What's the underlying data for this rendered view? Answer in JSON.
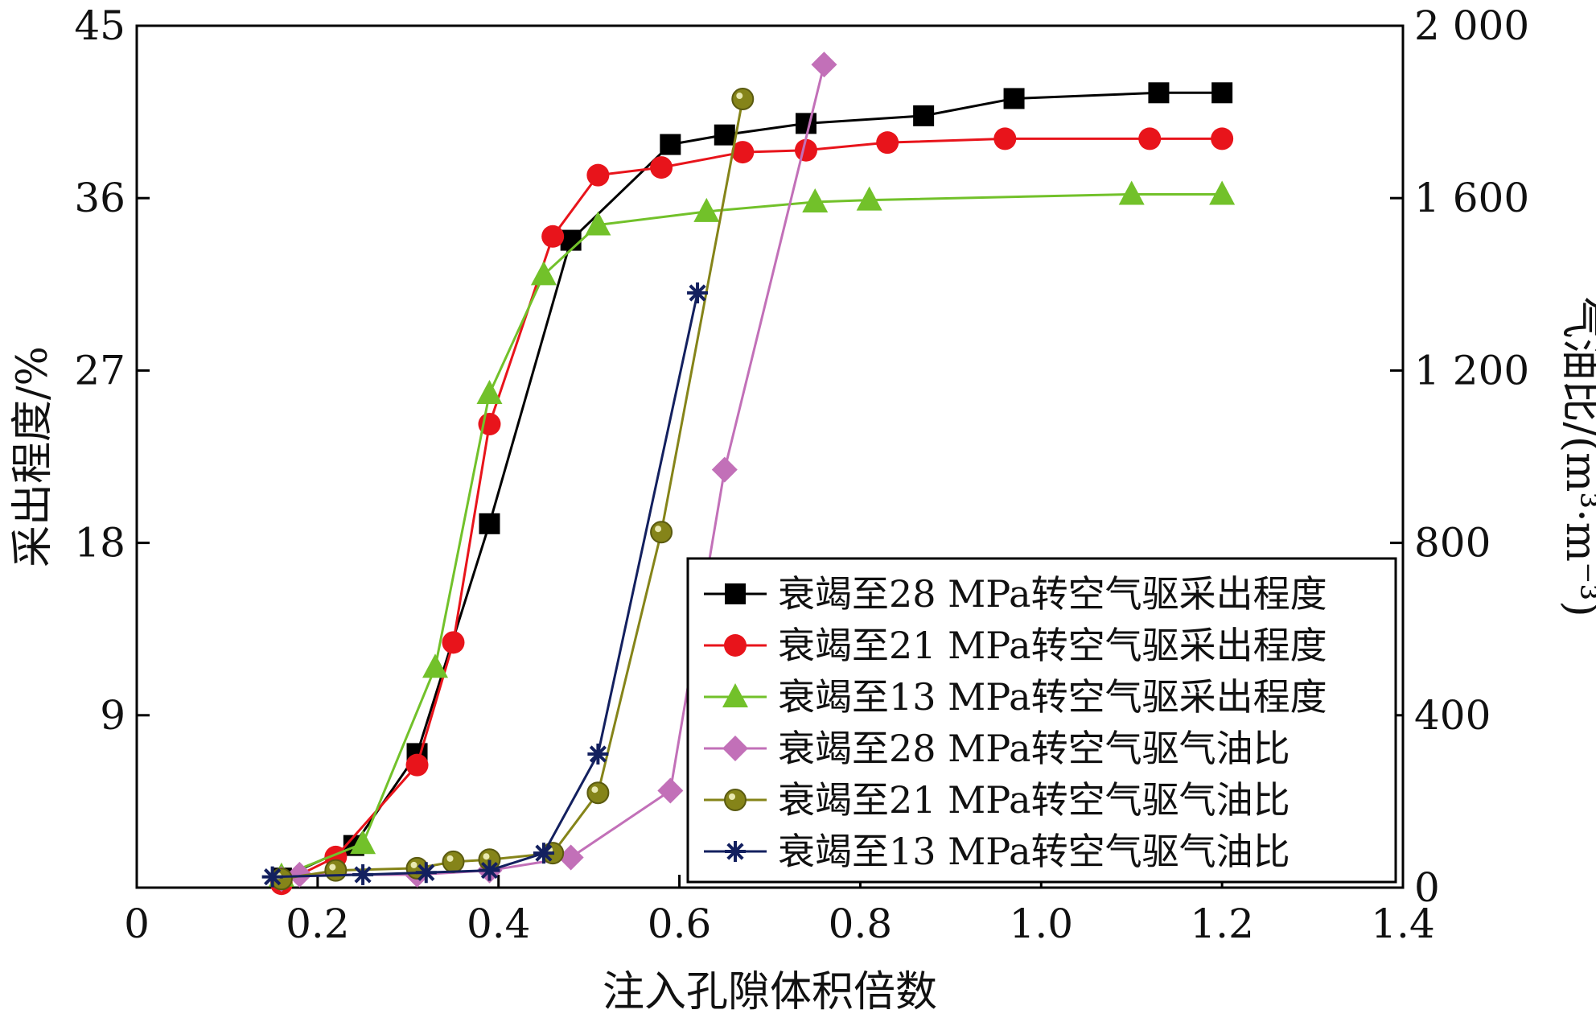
{
  "chart_data": {
    "type": "line",
    "xlabel": "注入孔隙体积倍数",
    "ylabel_left": "采出程度/%",
    "ylabel_right": "气油比/(m³·m⁻³)",
    "xlim": [
      0,
      1.4
    ],
    "ylim_left": [
      0,
      45
    ],
    "ylim_right": [
      0,
      2000
    ],
    "x_ticks": [
      0,
      0.2,
      0.4,
      0.6,
      0.8,
      1.0,
      1.2,
      1.4
    ],
    "x_tick_labels": [
      "0",
      "0.2",
      "0.4",
      "0.6",
      "0.8",
      "1.0",
      "1.2",
      "1.4"
    ],
    "y_left_ticks": [
      0,
      9,
      18,
      27,
      36,
      45
    ],
    "y_left_tick_labels": [
      "",
      "9",
      "18",
      "27",
      "36",
      "45"
    ],
    "y_right_ticks": [
      0,
      400,
      800,
      1200,
      1600,
      2000
    ],
    "y_right_tick_labels": [
      "0",
      "400",
      "800",
      "1 200",
      "1 600",
      "2 000"
    ],
    "legend_position": "bottom-right",
    "grid": false,
    "series": [
      {
        "name": "衰竭至28 MPa转空气驱采出程度",
        "axis": "left",
        "color": "#000000",
        "marker": "square",
        "x": [
          0.16,
          0.24,
          0.31,
          0.39,
          0.48,
          0.59,
          0.65,
          0.74,
          0.87,
          0.97,
          1.13,
          1.2
        ],
        "y": [
          0.5,
          2.2,
          7.0,
          19.0,
          33.8,
          38.8,
          39.3,
          39.9,
          40.3,
          41.2,
          41.5,
          41.5
        ]
      },
      {
        "name": "衰竭至21 MPa转空气驱采出程度",
        "axis": "left",
        "color": "#e8141b",
        "marker": "circle",
        "x": [
          0.16,
          0.22,
          0.31,
          0.35,
          0.39,
          0.46,
          0.51,
          0.58,
          0.67,
          0.74,
          0.83,
          0.96,
          1.12,
          1.2
        ],
        "y": [
          0.2,
          1.6,
          6.4,
          12.8,
          24.2,
          34.0,
          37.2,
          37.6,
          38.4,
          38.5,
          38.9,
          39.1,
          39.1,
          39.1
        ]
      },
      {
        "name": "衰竭至13 MPa转空气驱采出程度",
        "axis": "left",
        "color": "#72c12a",
        "marker": "triangle",
        "x": [
          0.16,
          0.25,
          0.33,
          0.39,
          0.45,
          0.51,
          0.63,
          0.75,
          0.81,
          1.1,
          1.2
        ],
        "y": [
          0.6,
          2.3,
          11.5,
          25.8,
          32.0,
          34.6,
          35.3,
          35.8,
          35.9,
          36.2,
          36.2
        ]
      },
      {
        "name": "衰竭至28 MPa转空气驱气油比",
        "axis": "right",
        "color": "#c270b8",
        "marker": "diamond",
        "x": [
          0.16,
          0.18,
          0.31,
          0.39,
          0.48,
          0.59,
          0.65,
          0.76
        ],
        "y": [
          20,
          30,
          30,
          40,
          70,
          225,
          970,
          1910
        ]
      },
      {
        "name": "衰竭至21 MPa转空气驱气油比",
        "axis": "right",
        "color": "#858419",
        "marker": "ball",
        "x": [
          0.16,
          0.22,
          0.31,
          0.35,
          0.39,
          0.46,
          0.51,
          0.58,
          0.67
        ],
        "y": [
          20,
          40,
          45,
          60,
          65,
          80,
          220,
          825,
          1830
        ]
      },
      {
        "name": "衰竭至13 MPa转空气驱气油比",
        "axis": "right",
        "color": "#13205f",
        "marker": "asterisk",
        "x": [
          0.15,
          0.25,
          0.32,
          0.39,
          0.45,
          0.51,
          0.62
        ],
        "y": [
          25,
          30,
          35,
          40,
          80,
          310,
          1380
        ]
      }
    ]
  }
}
